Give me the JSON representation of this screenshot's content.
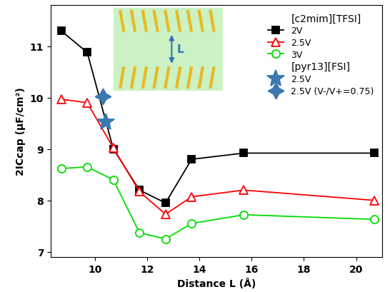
{
  "chart_data": {
    "type": "line",
    "x_label": "Distance L (Å)",
    "y_label": "2ICcap (μF/cm²)",
    "xlim": [
      8.3,
      21.0
    ],
    "xticks": [
      10,
      12,
      14,
      16,
      18,
      20
    ],
    "ylim": [
      6.9,
      11.8
    ],
    "yticks": [
      7,
      8,
      9,
      10,
      11
    ],
    "legend": "upper right",
    "annotations": [
      {
        "text": "L"
      }
    ],
    "series": [
      {
        "name": "2V",
        "group": "[c2mim][TFSI]",
        "type": "line",
        "color": "#000000",
        "marker": "square",
        "x": [
          8.7,
          9.7,
          10.7,
          11.7,
          12.7,
          13.7,
          15.7,
          20.7
        ],
        "values": [
          11.3,
          10.88,
          9.0,
          8.2,
          7.95,
          8.8,
          8.92,
          8.92
        ]
      },
      {
        "name": "2.5V",
        "group": "[c2mim][TFSI]",
        "type": "line",
        "color": "#ff0000",
        "marker": "open_triangle",
        "x": [
          8.7,
          9.7,
          10.7,
          11.7,
          12.7,
          13.7,
          15.7,
          20.7
        ],
        "values": [
          9.97,
          9.9,
          9.02,
          8.17,
          7.73,
          8.07,
          8.2,
          8.0
        ]
      },
      {
        "name": "3V",
        "group": "[c2mim][TFSI]",
        "type": "line",
        "color": "#00dd00",
        "marker": "open_circle",
        "x": [
          8.7,
          9.7,
          10.7,
          11.7,
          12.7,
          13.7,
          15.7,
          20.7
        ],
        "values": [
          8.62,
          8.65,
          8.4,
          7.37,
          7.25,
          7.55,
          7.72,
          7.63
        ]
      },
      {
        "name": "2.5V",
        "group": "[pyr13][FSI]",
        "type": "scatter",
        "color": "#3a78b0",
        "marker": "star",
        "x": [
          10.4
        ],
        "values": [
          9.52
        ]
      },
      {
        "name": "2.5V (V-/V+=0.75)",
        "group": "[pyr13][FSI]",
        "type": "scatter",
        "color": "#3a78b0",
        "marker": "star4",
        "x": [
          10.3
        ],
        "values": [
          10.03
        ]
      }
    ]
  }
}
